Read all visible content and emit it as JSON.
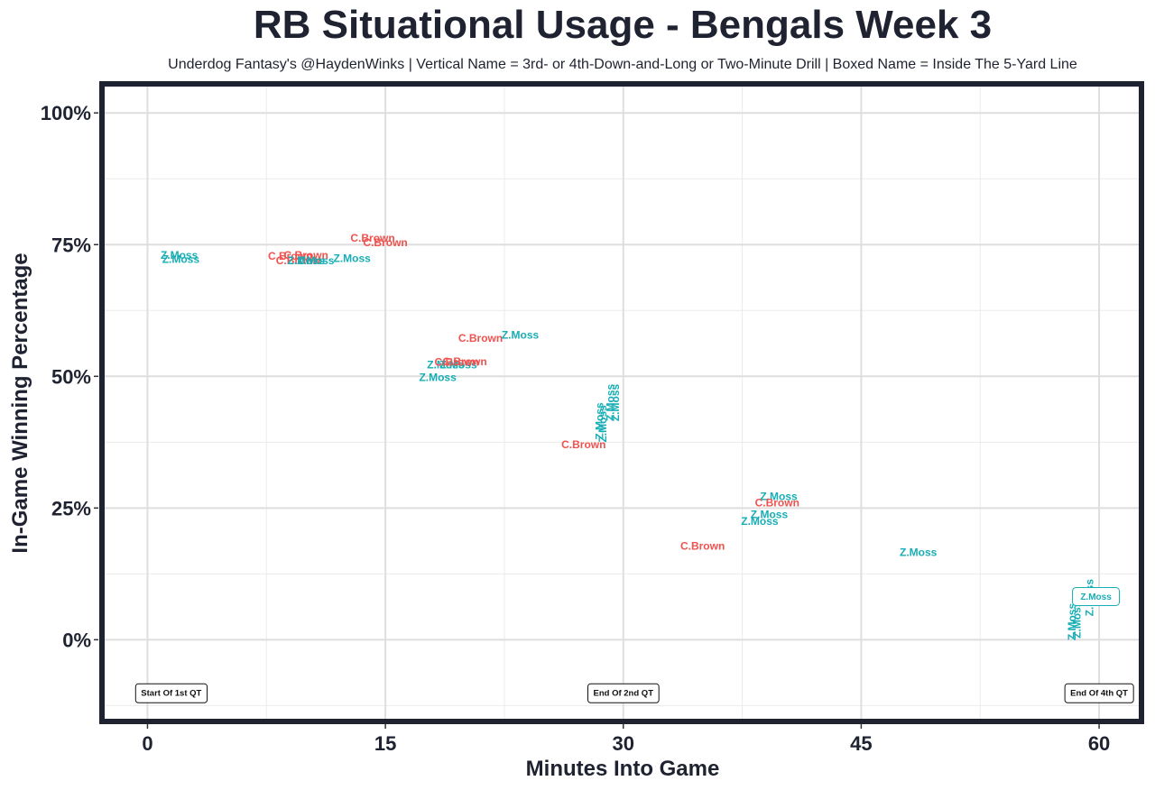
{
  "chart_data": {
    "type": "scatter",
    "title": "RB Situational Usage - Bengals Week 3",
    "subtitle": "Underdog Fantasy's @HaydenWinks | Vertical Name = 3rd- or 4th-Down-and-Long or Two-Minute Drill | Boxed Name = Inside The 5-Yard Line",
    "xlabel": "Minutes Into Game",
    "ylabel": "In-Game Winning Percentage",
    "xlim": [
      -2.7,
      62.5
    ],
    "ylim": [
      -0.15,
      1.05
    ],
    "x_ticks": [
      0,
      15,
      30,
      45,
      60
    ],
    "x_tick_labels": [
      "0",
      "15",
      "30",
      "45",
      "60"
    ],
    "y_ticks": [
      0,
      0.25,
      0.5,
      0.75,
      1.0
    ],
    "y_tick_labels": [
      "0%",
      "25%",
      "50%",
      "75%",
      "100%"
    ],
    "grid": true,
    "colors": {
      "C.Brown": "#f0524f",
      "Z.Moss": "#17aeb5"
    },
    "markers": [
      {
        "x": 1.5,
        "y": -0.1,
        "label": "Start Of 1st QT"
      },
      {
        "x": 30.0,
        "y": -0.1,
        "label": "End Of 2nd QT"
      },
      {
        "x": 60.0,
        "y": -0.1,
        "label": "End Of 4th QT"
      }
    ],
    "points": [
      {
        "player": "Z.Moss",
        "x": 2.0,
        "y": 0.73
      },
      {
        "player": "Z.Moss",
        "x": 2.1,
        "y": 0.722
      },
      {
        "player": "C.Brown",
        "x": 9.0,
        "y": 0.728
      },
      {
        "player": "C.Brown",
        "x": 10.0,
        "y": 0.73
      },
      {
        "player": "C.Brown",
        "x": 9.5,
        "y": 0.72
      },
      {
        "player": "Z.Moss",
        "x": 10.0,
        "y": 0.72
      },
      {
        "player": "Z.Moss",
        "x": 10.6,
        "y": 0.72
      },
      {
        "player": "Z.Moss",
        "x": 12.9,
        "y": 0.724
      },
      {
        "player": "C.Brown",
        "x": 14.2,
        "y": 0.762
      },
      {
        "player": "C.Brown",
        "x": 15.0,
        "y": 0.754
      },
      {
        "player": "C.Brown",
        "x": 21.0,
        "y": 0.572
      },
      {
        "player": "Z.Moss",
        "x": 23.5,
        "y": 0.578
      },
      {
        "player": "Z.Moss",
        "x": 18.8,
        "y": 0.522
      },
      {
        "player": "Z.Moss",
        "x": 19.6,
        "y": 0.522
      },
      {
        "player": "C.Brown",
        "x": 19.5,
        "y": 0.527
      },
      {
        "player": "C.Brown",
        "x": 20.0,
        "y": 0.528
      },
      {
        "player": "Z.Moss",
        "x": 18.3,
        "y": 0.498
      },
      {
        "player": "C.Brown",
        "x": 27.5,
        "y": 0.37
      },
      {
        "player": "Z.Moss",
        "x": 28.5,
        "y": 0.415,
        "vertical": true
      },
      {
        "player": "Z.Moss",
        "x": 28.7,
        "y": 0.41,
        "vertical": true
      },
      {
        "player": "Z.Moss",
        "x": 29.2,
        "y": 0.45,
        "vertical": true
      },
      {
        "player": "Z.Moss",
        "x": 29.5,
        "y": 0.45,
        "vertical": true
      },
      {
        "player": "Z.Moss",
        "x": 39.8,
        "y": 0.272
      },
      {
        "player": "C.Brown",
        "x": 39.7,
        "y": 0.26
      },
      {
        "player": "Z.Moss",
        "x": 39.2,
        "y": 0.238
      },
      {
        "player": "Z.Moss",
        "x": 38.6,
        "y": 0.225
      },
      {
        "player": "C.Brown",
        "x": 35.0,
        "y": 0.178
      },
      {
        "player": "Z.Moss",
        "x": 48.6,
        "y": 0.166
      },
      {
        "player": "Z.Moss",
        "x": 58.3,
        "y": 0.034,
        "vertical": true
      },
      {
        "player": "Z.Moss",
        "x": 58.6,
        "y": 0.038,
        "vertical": true
      },
      {
        "player": "Z.Moss",
        "x": 59.4,
        "y": 0.08,
        "vertical": true
      },
      {
        "player": "Z.Moss",
        "x": 59.8,
        "y": 0.082,
        "boxed": true
      }
    ]
  }
}
